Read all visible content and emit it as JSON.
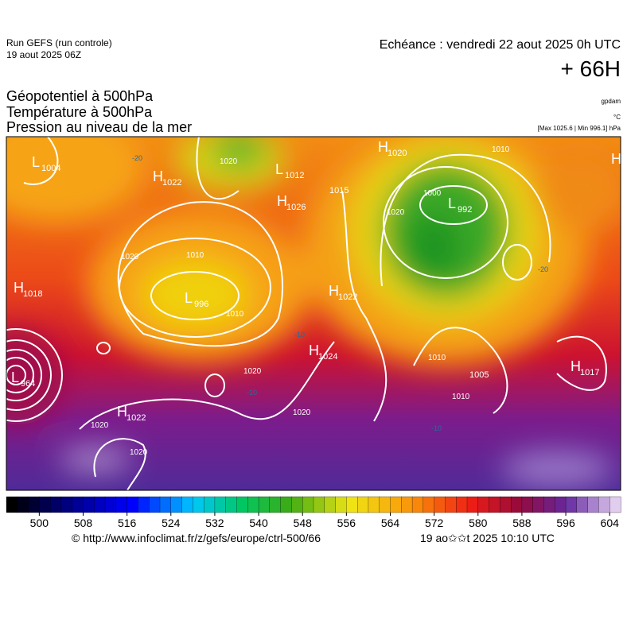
{
  "header": {
    "run": "Run GEFS (run controle)",
    "run_date": "19 aout 2025 06Z",
    "valid": "Echéance : vendredi 22 aout 2025 0h UTC",
    "lead": "+ 66H"
  },
  "titles": [
    "Géopotentiel à 500hPa",
    "Température à 500hPa",
    "Pression au niveau de la mer"
  ],
  "units": {
    "geopotential": "gpdam",
    "temperature": "°C",
    "pressure": "[Max 1025.6 | Min 996.1] hPa"
  },
  "pressure_centers": [
    {
      "letter": "L",
      "value": 1004
    },
    {
      "letter": "H",
      "value": 1022
    },
    {
      "letter": "L",
      "value": 1012
    },
    {
      "value": 1015
    },
    {
      "letter": "H",
      "value": 1020
    },
    {
      "letter": "L",
      "value": 992
    },
    {
      "letter": "H",
      "value": 1026
    },
    {
      "letter": "H",
      "value": 1018
    },
    {
      "letter": "L",
      "value": 996
    },
    {
      "letter": "H",
      "value": 1022
    },
    {
      "letter": "H",
      "value": 1024
    },
    {
      "letter": "L",
      "value": 964
    },
    {
      "letter": "H",
      "value": 1022
    },
    {
      "value": 1005
    },
    {
      "letter": "H",
      "value": 1017
    },
    {
      "letter": "H"
    }
  ],
  "isobar_labels": [
    1010,
    1000,
    1020,
    1010,
    1020,
    1010,
    1020,
    1020,
    1020,
    1020,
    1010,
    1010,
    1020
  ],
  "temperature_labels": [
    -20,
    -20,
    -10,
    -10,
    -10
  ],
  "colorbar": {
    "range": [
      494,
      606
    ],
    "ticks": [
      500,
      508,
      516,
      524,
      532,
      540,
      548,
      556,
      564,
      572,
      580,
      588,
      596,
      604
    ]
  },
  "footer": {
    "source": "© http://www.infoclimat.fr/z/gefs/europe/ctrl-500/66",
    "generated": "19 ao✩✩t 2025 10:10 UTC"
  }
}
